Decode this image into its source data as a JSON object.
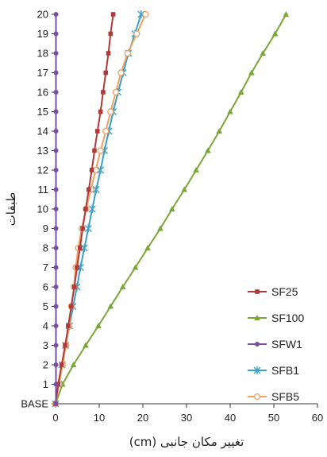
{
  "chart_data": {
    "type": "line",
    "title": "",
    "xlabel": "تغییر مکان جانبی (cm)",
    "ylabel": "طبقات",
    "xlim": [
      0,
      60
    ],
    "xticks": [
      0,
      10,
      20,
      30,
      40,
      50,
      60
    ],
    "categories": [
      "BASE",
      "1",
      "2",
      "3",
      "4",
      "5",
      "6",
      "7",
      "8",
      "9",
      "10",
      "11",
      "12",
      "13",
      "14",
      "15",
      "16",
      "17",
      "18",
      "19",
      "20"
    ],
    "grid": false,
    "legend_position": "right",
    "series": [
      {
        "name": "SF25",
        "color": "#b03a3a",
        "marker": "square",
        "values": [
          0,
          0.6,
          1.4,
          2.2,
          2.9,
          3.6,
          4.3,
          4.9,
          5.6,
          6.2,
          6.9,
          7.6,
          8.3,
          8.9,
          9.6,
          10.3,
          10.9,
          11.5,
          12.1,
          12.6,
          13.2
        ]
      },
      {
        "name": "SF100",
        "color": "#79a736",
        "marker": "triangle",
        "values": [
          0,
          1.6,
          4.1,
          6.9,
          9.8,
          12.6,
          15.4,
          18.3,
          21.1,
          24.0,
          26.7,
          29.5,
          32.2,
          34.9,
          37.5,
          40.0,
          42.5,
          44.9,
          47.5,
          50.3,
          52.8
        ]
      },
      {
        "name": "SFW1",
        "color": "#7a4fa1",
        "marker": "circle",
        "values": [
          0.1,
          0.1,
          0.1,
          0.1,
          0.1,
          0.1,
          0.1,
          0.1,
          0.1,
          0.1,
          0.1,
          0.1,
          0.1,
          0.1,
          0.1,
          0.1,
          0.1,
          0.1,
          0.1,
          0.1,
          0.1
        ]
      },
      {
        "name": "SFB1",
        "color": "#3aa0c8",
        "marker": "star",
        "values": [
          0,
          0.7,
          1.5,
          2.3,
          3.2,
          4.0,
          4.9,
          5.7,
          6.6,
          7.5,
          8.4,
          9.3,
          10.3,
          11.2,
          12.2,
          13.2,
          14.3,
          15.5,
          16.7,
          18.2,
          19.6
        ]
      },
      {
        "name": "SFB5",
        "color": "#f0a060",
        "marker": "open-circle",
        "values": [
          0,
          0.8,
          1.6,
          2.4,
          3.1,
          3.6,
          4.2,
          4.6,
          5.2,
          6.0,
          7.0,
          8.1,
          9.2,
          10.3,
          11.5,
          12.6,
          13.8,
          15.0,
          16.5,
          18.6,
          20.6
        ]
      }
    ]
  }
}
